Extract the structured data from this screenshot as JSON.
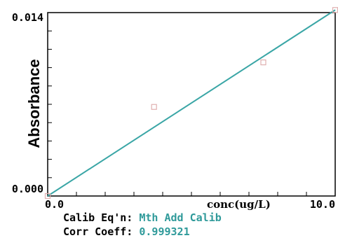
{
  "chart_data": {
    "type": "scatter",
    "xlabel": "conc(ug/L)",
    "ylabel": "Absorbance",
    "xlim": [
      0,
      10
    ],
    "ylim": [
      0,
      0.014
    ],
    "x_tick_labels": [
      "0.0",
      "10.0"
    ],
    "y_tick_labels": [
      "0.000",
      "0.014"
    ],
    "series": [
      {
        "x": [
          0,
          3.7,
          7.5,
          10.0
        ],
        "y": [
          0.0,
          0.0068,
          0.0102,
          0.0142
        ]
      }
    ],
    "fit_line": {
      "x": [
        0,
        10.0
      ],
      "y": [
        0.0,
        0.0142
      ]
    },
    "grid": false,
    "colors": {
      "fit_line": "#3aa6a6",
      "points": "#e0b0b0",
      "value_text": "#2f9a9a"
    }
  },
  "calibration": {
    "equation_label": "Calib Eq'n:",
    "equation_value": "Mth Add Calib",
    "corr_label": "Corr Coeff:",
    "corr_value": "0.999321"
  }
}
